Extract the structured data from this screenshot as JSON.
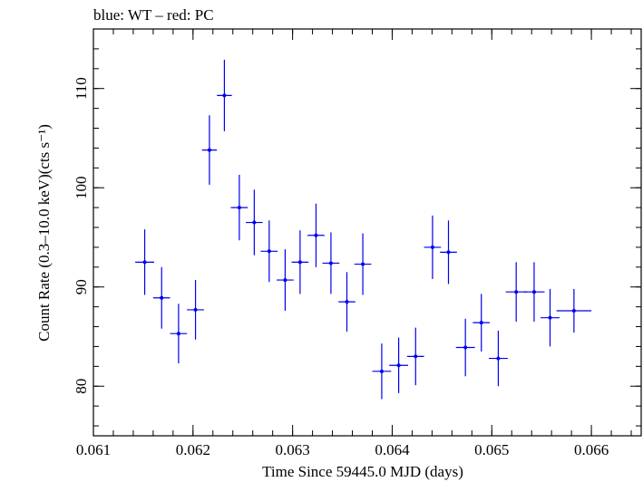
{
  "chart_data": {
    "type": "scatter",
    "title": "blue: WT – red: PC",
    "xlabel": "Time Since 59445.0 MJD (days)",
    "ylabel": "Count Rate (0.3–10.0 keV)(cts s⁻¹)",
    "xlim": [
      0.061,
      0.0665
    ],
    "ylim": [
      75,
      116
    ],
    "x_ticks": [
      {
        "value": 0.061,
        "label": "0.061"
      },
      {
        "value": 0.062,
        "label": "0.062"
      },
      {
        "value": 0.063,
        "label": "0.063"
      },
      {
        "value": 0.064,
        "label": "0.064"
      },
      {
        "value": 0.065,
        "label": "0.065"
      },
      {
        "value": 0.066,
        "label": "0.066"
      }
    ],
    "y_ticks": [
      {
        "value": 80,
        "label": "80"
      },
      {
        "value": 90,
        "label": "90"
      },
      {
        "value": 100,
        "label": "100"
      },
      {
        "value": 110,
        "label": "110"
      }
    ],
    "series": [
      {
        "color": "#0000ee",
        "points": [
          {
            "x": 0.061515,
            "xerr": 9.5e-05,
            "y": 92.5,
            "yerr": 3.3
          },
          {
            "x": 0.061685,
            "xerr": 8.5e-05,
            "y": 88.9,
            "yerr": 3.1
          },
          {
            "x": 0.061855,
            "xerr": 8.5e-05,
            "y": 85.3,
            "yerr": 3.0
          },
          {
            "x": 0.062025,
            "xerr": 8.5e-05,
            "y": 87.7,
            "yerr": 3.0
          },
          {
            "x": 0.062165,
            "xerr": 7.5e-05,
            "y": 103.8,
            "yerr": 3.5
          },
          {
            "x": 0.062315,
            "xerr": 7.5e-05,
            "y": 109.3,
            "yerr": 3.6
          },
          {
            "x": 0.062465,
            "xerr": 8.5e-05,
            "y": 98.0,
            "yerr": 3.3
          },
          {
            "x": 0.062615,
            "xerr": 8.5e-05,
            "y": 96.5,
            "yerr": 3.3
          },
          {
            "x": 0.062765,
            "xerr": 8.5e-05,
            "y": 93.6,
            "yerr": 3.1
          },
          {
            "x": 0.062925,
            "xerr": 8.5e-05,
            "y": 90.7,
            "yerr": 3.1
          },
          {
            "x": 0.063075,
            "xerr": 8.5e-05,
            "y": 92.5,
            "yerr": 3.2
          },
          {
            "x": 0.063235,
            "xerr": 8.5e-05,
            "y": 95.2,
            "yerr": 3.2
          },
          {
            "x": 0.063385,
            "xerr": 8.5e-05,
            "y": 92.4,
            "yerr": 3.1
          },
          {
            "x": 0.063545,
            "xerr": 8.5e-05,
            "y": 88.5,
            "yerr": 3.0
          },
          {
            "x": 0.063705,
            "xerr": 8.5e-05,
            "y": 92.3,
            "yerr": 3.1
          },
          {
            "x": 0.063895,
            "xerr": 9.5e-05,
            "y": 81.5,
            "yerr": 2.8
          },
          {
            "x": 0.064065,
            "xerr": 9.5e-05,
            "y": 82.1,
            "yerr": 2.8
          },
          {
            "x": 0.064235,
            "xerr": 8.5e-05,
            "y": 83.0,
            "yerr": 2.9
          },
          {
            "x": 0.064405,
            "xerr": 8.5e-05,
            "y": 94.0,
            "yerr": 3.2
          },
          {
            "x": 0.064565,
            "xerr": 8.5e-05,
            "y": 93.5,
            "yerr": 3.2
          },
          {
            "x": 0.064735,
            "xerr": 9.5e-05,
            "y": 83.9,
            "yerr": 2.9
          },
          {
            "x": 0.064895,
            "xerr": 8.5e-05,
            "y": 86.4,
            "yerr": 2.9
          },
          {
            "x": 0.065065,
            "xerr": 9.5e-05,
            "y": 82.8,
            "yerr": 2.8
          },
          {
            "x": 0.065245,
            "xerr": 0.000105,
            "y": 89.5,
            "yerr": 3.0
          },
          {
            "x": 0.065425,
            "xerr": 0.000105,
            "y": 89.5,
            "yerr": 3.0
          },
          {
            "x": 0.065585,
            "xerr": 9.5e-05,
            "y": 86.9,
            "yerr": 2.9
          },
          {
            "x": 0.065825,
            "xerr": 0.000175,
            "y": 87.6,
            "yerr": 2.2
          }
        ]
      }
    ]
  }
}
